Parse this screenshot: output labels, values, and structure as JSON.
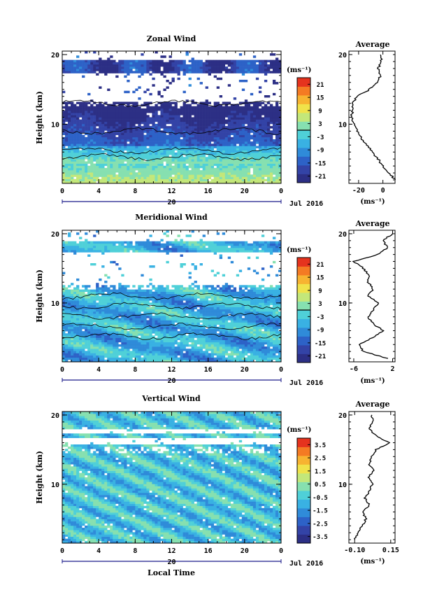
{
  "figure": {
    "date_label": "Jul 2016",
    "x_axis_title": "Local Time",
    "y_axis_title": "Height (km)",
    "unit_label": "(ms⁻¹)"
  },
  "chart_data": [
    {
      "type": "heatmap",
      "title": "Zonal Wind",
      "xlabel": "",
      "ylabel": "Height (km)",
      "x_ticks": [
        "0",
        "4",
        "8",
        "12",
        "16",
        "20",
        "0"
      ],
      "x_range": [
        0,
        24
      ],
      "day_label": "20",
      "y_ticks": [
        "10",
        "20"
      ],
      "ylim": [
        1.5,
        20.5
      ],
      "colorbar": {
        "unit": "(ms⁻¹)",
        "ticks": [
          "21",
          "15",
          "9",
          "3",
          "-3",
          "-9",
          "-15",
          "-21"
        ],
        "range": [
          -24,
          24
        ],
        "contour_level": 0
      },
      "profile": {
        "title": "Average",
        "x_ticks": [
          "-20",
          "0"
        ],
        "xlim": [
          -28,
          10
        ],
        "xlabel": "(ms⁻¹)",
        "height_km": [
          2,
          3,
          4,
          5,
          6,
          7,
          8,
          9,
          10,
          11,
          12,
          13,
          14,
          15,
          16,
          17,
          18,
          19,
          20
        ],
        "values": [
          10,
          5,
          0,
          -4,
          -9,
          -13,
          -18,
          -21,
          -23,
          -26,
          -25,
          -25,
          -21,
          -11,
          -5,
          -2,
          -4,
          -1,
          -2
        ]
      },
      "regions": {
        "blank_km": [
          [
            13.2,
            17.3
          ],
          [
            19.1,
            20.5
          ]
        ],
        "sparse_band_km": [
          12.5,
          13.5
        ]
      }
    },
    {
      "type": "heatmap",
      "title": "Meridional Wind",
      "xlabel": "",
      "ylabel": "Height (km)",
      "x_ticks": [
        "0",
        "4",
        "8",
        "12",
        "16",
        "20",
        "0"
      ],
      "x_range": [
        0,
        24
      ],
      "day_label": "20",
      "y_ticks": [
        "10",
        "20"
      ],
      "ylim": [
        1.5,
        20.5
      ],
      "colorbar": {
        "unit": "(ms⁻¹)",
        "ticks": [
          "21",
          "15",
          "9",
          "3",
          "-3",
          "-9",
          "-15",
          "-21"
        ],
        "range": [
          -24,
          24
        ],
        "contour_level": 0
      },
      "profile": {
        "title": "Average",
        "x_ticks": [
          "-6",
          "2"
        ],
        "xlim": [
          -7,
          2.5
        ],
        "xlabel": "(ms⁻¹)",
        "height_km": [
          2,
          3,
          4,
          5,
          6,
          7,
          8,
          9,
          10,
          11,
          12,
          13,
          14,
          15,
          16,
          17,
          18,
          19,
          20
        ],
        "values": [
          1,
          -4,
          -5,
          -2,
          0,
          -2,
          -3,
          -2,
          -1,
          -3,
          -2,
          -3,
          -3,
          -4,
          -6,
          -1,
          1,
          0,
          2
        ]
      },
      "regions": {
        "blank_km": [
          [
            12.5,
            17.2
          ],
          [
            18.8,
            20.5
          ]
        ],
        "sparse_band_km": [
          11.8,
          12.8
        ]
      }
    },
    {
      "type": "heatmap",
      "title": "Vertical Wind",
      "xlabel": "Local Time",
      "ylabel": "Height (km)",
      "x_ticks": [
        "0",
        "4",
        "8",
        "12",
        "16",
        "20",
        "0"
      ],
      "x_range": [
        0,
        24
      ],
      "day_label": "20",
      "y_ticks": [
        "10",
        "20"
      ],
      "ylim": [
        1.5,
        20.5
      ],
      "colorbar": {
        "unit": "(ms⁻¹)",
        "ticks": [
          "3.5",
          "2.5",
          "1.5",
          "0.5",
          "-0.5",
          "-1.5",
          "-2.5",
          "-3.5"
        ],
        "range": [
          -4,
          4
        ],
        "contour_level": null
      },
      "profile": {
        "title": "Average",
        "x_ticks": [
          "-0.10",
          "0.15"
        ],
        "xlim": [
          -0.14,
          0.18
        ],
        "xlabel": "(ms⁻¹)",
        "height_km": [
          2,
          3,
          4,
          5,
          6,
          7,
          8,
          9,
          10,
          11,
          12,
          13,
          14,
          15,
          16,
          17,
          18,
          19,
          20
        ],
        "values": [
          -0.1,
          -0.07,
          -0.05,
          -0.02,
          -0.05,
          0.0,
          -0.03,
          0.0,
          0.02,
          0.0,
          0.03,
          0.0,
          0.02,
          0.05,
          0.14,
          0.05,
          0.0,
          0.03,
          0.02
        ]
      },
      "regions": {
        "blank_km": [
          [
            15.6,
            16.6
          ],
          [
            17.4,
            18.0
          ]
        ],
        "sparse_band_km": [
          14.6,
          15.4
        ]
      }
    }
  ]
}
